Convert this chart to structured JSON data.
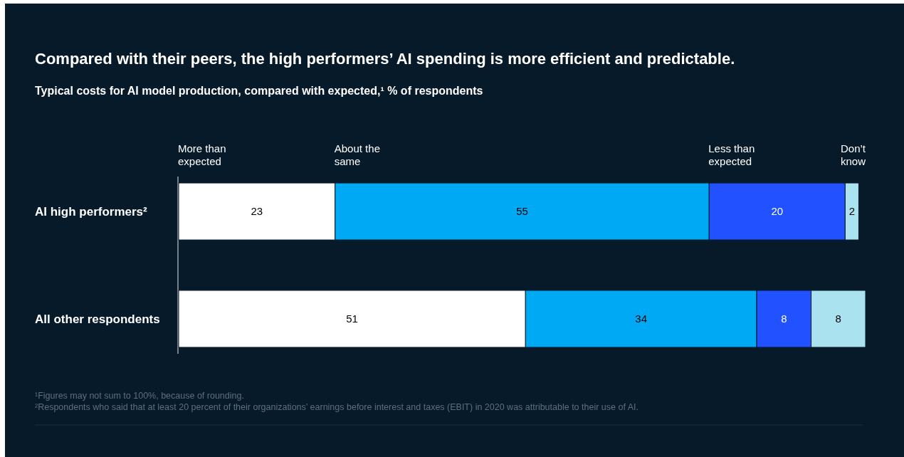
{
  "chart_data": {
    "type": "bar",
    "orientation": "horizontal",
    "stacked": true,
    "title": "Compared with their peers, the high performers’ AI spending is more efficient and predictable.",
    "subtitle": "Typical costs for AI model production, compared with expected,¹ % of respondents",
    "categories": [
      "AI high performers²",
      "All other respondents"
    ],
    "series": [
      {
        "name": "More than expected",
        "color": "#ffffff",
        "values": [
          23,
          51
        ]
      },
      {
        "name": "About the same",
        "color": "#00a9f4",
        "values": [
          55,
          34
        ]
      },
      {
        "name": "Less than expected",
        "color": "#2251ff",
        "values": [
          20,
          8
        ]
      },
      {
        "name": "Don’t know",
        "color": "#aae3ef",
        "values": [
          2,
          8
        ]
      }
    ],
    "data_labels": true,
    "legend": "top",
    "tick_labels": "y",
    "annotations": [
      "¹Figures may not sum to 100%, because of rounding.",
      "²Respondents who said that at least 20 percent of their organizations’ earnings before interest and taxes (EBIT) in 2020 was attributable to their use of AI."
    ]
  }
}
